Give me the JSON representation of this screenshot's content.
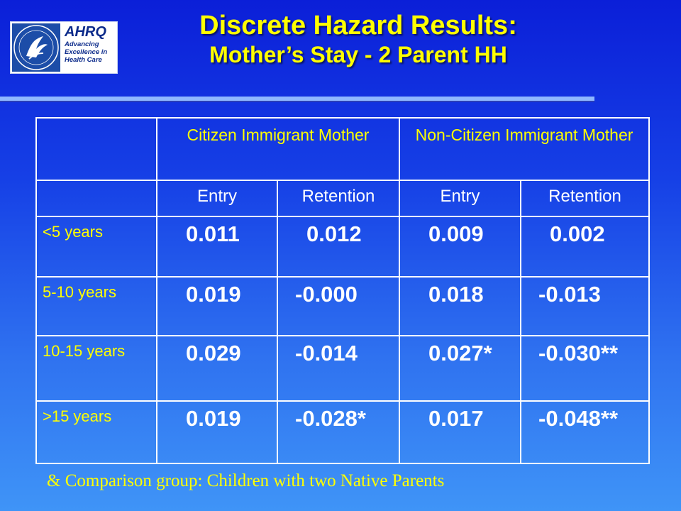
{
  "logo": {
    "word": "AHRQ",
    "tagline": [
      "Advancing",
      "Excellence in",
      "Health Care"
    ]
  },
  "title": {
    "line1": "Discrete Hazard Results:",
    "line2": "Mother’s Stay - 2 Parent HH"
  },
  "table": {
    "groups": [
      "Citizen Immigrant Mother",
      "Non-Citizen Immigrant Mother"
    ],
    "subheaders": [
      "Entry",
      "Retention",
      "Entry",
      "Retention"
    ],
    "rows": [
      {
        "label": "<5 years",
        "values": [
          "0.011",
          "0.012",
          "0.009",
          "0.002"
        ]
      },
      {
        "label": "5-10 years",
        "values": [
          "0.019",
          "-0.000",
          "0.018",
          "-0.013"
        ]
      },
      {
        "label": "10-15 years",
        "values": [
          "0.029",
          "-0.014",
          "0.027*",
          "-0.030**"
        ]
      },
      {
        "label": ">15 years",
        "values": [
          "0.019",
          "-0.028*",
          "0.017",
          "-0.048**"
        ]
      }
    ]
  },
  "footnote": "& Comparison group: Children with two Native Parents",
  "colors": {
    "background": "#1640e6",
    "title": "#ffff00",
    "accent": "#ffff00"
  }
}
